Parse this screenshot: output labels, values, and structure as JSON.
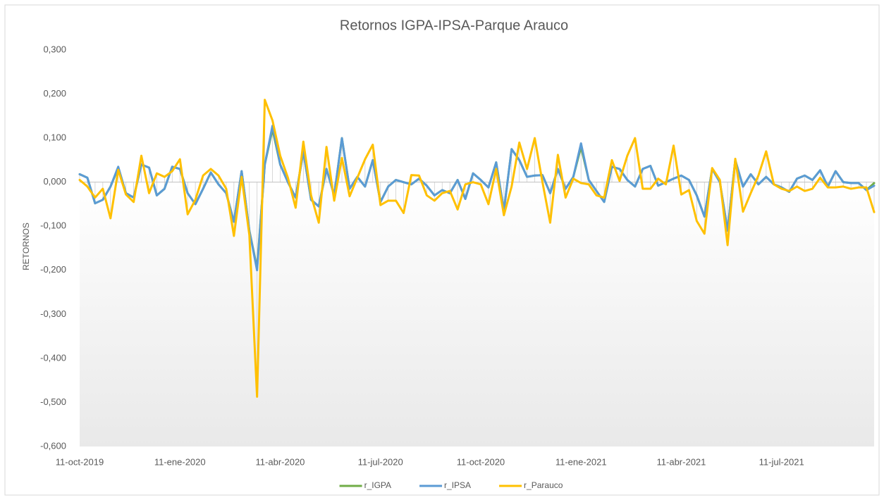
{
  "chart_data": {
    "type": "line",
    "title": "Retornos IGPA-IPSA-Parque Arauco",
    "y_label": "RETORNOS",
    "categories": [
      "11-oct-2019",
      null,
      null,
      null,
      null,
      null,
      null,
      null,
      null,
      null,
      null,
      null,
      null,
      "11-ene-2020",
      null,
      null,
      null,
      null,
      null,
      null,
      null,
      null,
      null,
      null,
      null,
      null,
      "11-abr-2020",
      null,
      null,
      null,
      null,
      null,
      null,
      null,
      null,
      null,
      null,
      null,
      null,
      "11-jul-2020",
      null,
      null,
      null,
      null,
      null,
      null,
      null,
      null,
      null,
      null,
      null,
      null,
      "11-oct-2020",
      null,
      null,
      null,
      null,
      null,
      null,
      null,
      null,
      null,
      null,
      null,
      null,
      "11-ene-2021",
      null,
      null,
      null,
      null,
      null,
      null,
      null,
      null,
      null,
      null,
      null,
      null,
      "11-abr-2021",
      null,
      null,
      null,
      null,
      null,
      null,
      null,
      null,
      null,
      null,
      null,
      null,
      "11-jul-2021",
      null,
      null,
      null,
      null,
      null,
      null,
      null,
      null,
      null,
      null,
      null,
      null
    ],
    "series": [
      {
        "name": "r_IGPA",
        "color": "#70ad47",
        "values": [
          0.018,
          0.01,
          -0.048,
          -0.04,
          -0.01,
          0.032,
          -0.025,
          -0.035,
          0.04,
          0.033,
          -0.03,
          -0.015,
          0.035,
          0.03,
          -0.025,
          -0.05,
          -0.015,
          0.022,
          -0.005,
          -0.025,
          -0.09,
          0.025,
          -0.11,
          -0.195,
          0.04,
          0.12,
          0.04,
          0.0,
          -0.035,
          0.07,
          -0.04,
          -0.055,
          0.03,
          -0.03,
          0.1,
          -0.015,
          0.012,
          -0.01,
          0.05,
          -0.045,
          -0.01,
          0.005,
          0.0,
          -0.005,
          0.008,
          -0.008,
          -0.03,
          -0.018,
          -0.025,
          0.005,
          -0.038,
          0.02,
          0.005,
          -0.012,
          0.045,
          -0.065,
          0.075,
          0.05,
          0.012,
          0.015,
          0.016,
          -0.025,
          0.03,
          -0.015,
          0.012,
          0.08,
          0.005,
          -0.02,
          -0.045,
          0.035,
          0.03,
          0.005,
          -0.01,
          0.03,
          0.037,
          -0.008,
          0.0,
          0.008,
          0.015,
          0.005,
          -0.03,
          -0.078,
          0.03,
          0.0,
          -0.11,
          0.05,
          -0.01,
          0.018,
          -0.005,
          0.012,
          -0.005,
          -0.012,
          -0.022,
          0.008,
          0.015,
          0.005,
          0.027,
          -0.01,
          0.025,
          0.0,
          -0.002,
          -0.002,
          -0.018,
          -0.002
        ]
      },
      {
        "name": "r_IPSA",
        "color": "#5b9bd5",
        "values": [
          0.018,
          0.01,
          -0.048,
          -0.04,
          -0.01,
          0.035,
          -0.025,
          -0.035,
          0.04,
          0.033,
          -0.03,
          -0.015,
          0.035,
          0.03,
          -0.025,
          -0.05,
          -0.015,
          0.022,
          -0.005,
          -0.025,
          -0.09,
          0.025,
          -0.11,
          -0.2,
          0.04,
          0.128,
          0.04,
          0.0,
          -0.035,
          0.07,
          -0.04,
          -0.055,
          0.03,
          -0.03,
          0.1,
          -0.015,
          0.012,
          -0.01,
          0.05,
          -0.045,
          -0.01,
          0.005,
          0.0,
          -0.005,
          0.008,
          -0.008,
          -0.03,
          -0.018,
          -0.025,
          0.005,
          -0.038,
          0.02,
          0.005,
          -0.012,
          0.045,
          -0.065,
          0.075,
          0.05,
          0.012,
          0.015,
          0.016,
          -0.025,
          0.03,
          -0.015,
          0.012,
          0.088,
          0.005,
          -0.02,
          -0.045,
          0.035,
          0.03,
          0.005,
          -0.01,
          0.03,
          0.037,
          -0.008,
          0.0,
          0.008,
          0.015,
          0.005,
          -0.03,
          -0.078,
          0.03,
          0.0,
          -0.11,
          0.05,
          -0.01,
          0.018,
          -0.005,
          0.012,
          -0.005,
          -0.012,
          -0.022,
          0.008,
          0.015,
          0.005,
          0.027,
          -0.01,
          0.025,
          0.0,
          -0.002,
          -0.002,
          -0.018,
          -0.008
        ]
      },
      {
        "name": "r_Parauco",
        "color": "#ffc000",
        "values": [
          0.005,
          -0.01,
          -0.035,
          -0.015,
          -0.082,
          0.028,
          -0.028,
          -0.045,
          0.06,
          -0.025,
          0.02,
          0.012,
          0.025,
          0.052,
          -0.073,
          -0.04,
          0.015,
          0.03,
          0.015,
          -0.015,
          -0.122,
          0.012,
          -0.12,
          -0.487,
          0.187,
          0.14,
          0.06,
          0.01,
          -0.058,
          0.092,
          -0.03,
          -0.092,
          0.08,
          -0.042,
          0.055,
          -0.032,
          0.01,
          0.052,
          0.085,
          -0.052,
          -0.042,
          -0.042,
          -0.07,
          0.016,
          0.015,
          -0.03,
          -0.042,
          -0.025,
          -0.02,
          -0.062,
          -0.005,
          0.0,
          -0.005,
          -0.05,
          0.03,
          -0.075,
          -0.01,
          0.09,
          0.03,
          0.1,
          0.0,
          -0.092,
          0.062,
          -0.035,
          0.008,
          -0.002,
          -0.005,
          -0.03,
          -0.035,
          0.05,
          0.003,
          0.06,
          0.1,
          -0.015,
          -0.015,
          0.008,
          -0.005,
          0.083,
          -0.028,
          -0.018,
          -0.088,
          -0.117,
          0.032,
          0.005,
          -0.143,
          0.053,
          -0.067,
          -0.025,
          0.015,
          0.07,
          -0.005,
          -0.015,
          -0.02,
          -0.01,
          -0.02,
          -0.015,
          0.01,
          -0.012,
          -0.012,
          -0.01,
          -0.015,
          -0.012,
          -0.012,
          -0.068
        ]
      }
    ],
    "ylim": [
      -0.6,
      0.3
    ],
    "yticks": [
      {
        "value": -0.6,
        "label": "-0,600"
      },
      {
        "value": -0.5,
        "label": "-0,500"
      },
      {
        "value": -0.4,
        "label": "-0,400"
      },
      {
        "value": -0.3,
        "label": "-0,300"
      },
      {
        "value": -0.2,
        "label": "-0,200"
      },
      {
        "value": -0.1,
        "label": "-0,100"
      },
      {
        "value": 0,
        "label": "0,000"
      },
      {
        "value": 0.1,
        "label": "0,100"
      },
      {
        "value": 0.2,
        "label": "0,200"
      },
      {
        "value": 0.3,
        "label": "0,300"
      }
    ],
    "grid": false,
    "drop_lines": true,
    "legend": "bottom"
  }
}
